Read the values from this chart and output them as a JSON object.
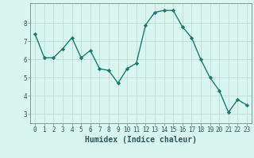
{
  "x": [
    0,
    1,
    2,
    3,
    4,
    5,
    6,
    7,
    8,
    9,
    10,
    11,
    12,
    13,
    14,
    15,
    16,
    17,
    18,
    19,
    20,
    21,
    22,
    23
  ],
  "y": [
    7.4,
    6.1,
    6.1,
    6.6,
    7.2,
    6.1,
    6.5,
    5.5,
    5.4,
    4.7,
    5.5,
    5.8,
    7.9,
    8.6,
    8.7,
    8.7,
    7.8,
    7.2,
    6.0,
    5.0,
    4.3,
    3.1,
    3.8,
    3.5
  ],
  "line_color": "#1a7a6e",
  "marker": "D",
  "markersize": 2.2,
  "linewidth": 1.0,
  "background_color": "#d9f5f0",
  "grid_color": "#c0dbd6",
  "xlabel": "Humidex (Indice chaleur)",
  "ylabel": "",
  "title": "",
  "xlim": [
    -0.5,
    23.5
  ],
  "ylim": [
    2.5,
    9.1
  ],
  "yticks": [
    3,
    4,
    5,
    6,
    7,
    8
  ],
  "xticks": [
    0,
    1,
    2,
    3,
    4,
    5,
    6,
    7,
    8,
    9,
    10,
    11,
    12,
    13,
    14,
    15,
    16,
    17,
    18,
    19,
    20,
    21,
    22,
    23
  ],
  "tick_fontsize": 5.5,
  "xlabel_fontsize": 7.0,
  "tick_color": "#2a5a54",
  "axis_color": "#7a9a96",
  "spine_color": "#7a9a96"
}
